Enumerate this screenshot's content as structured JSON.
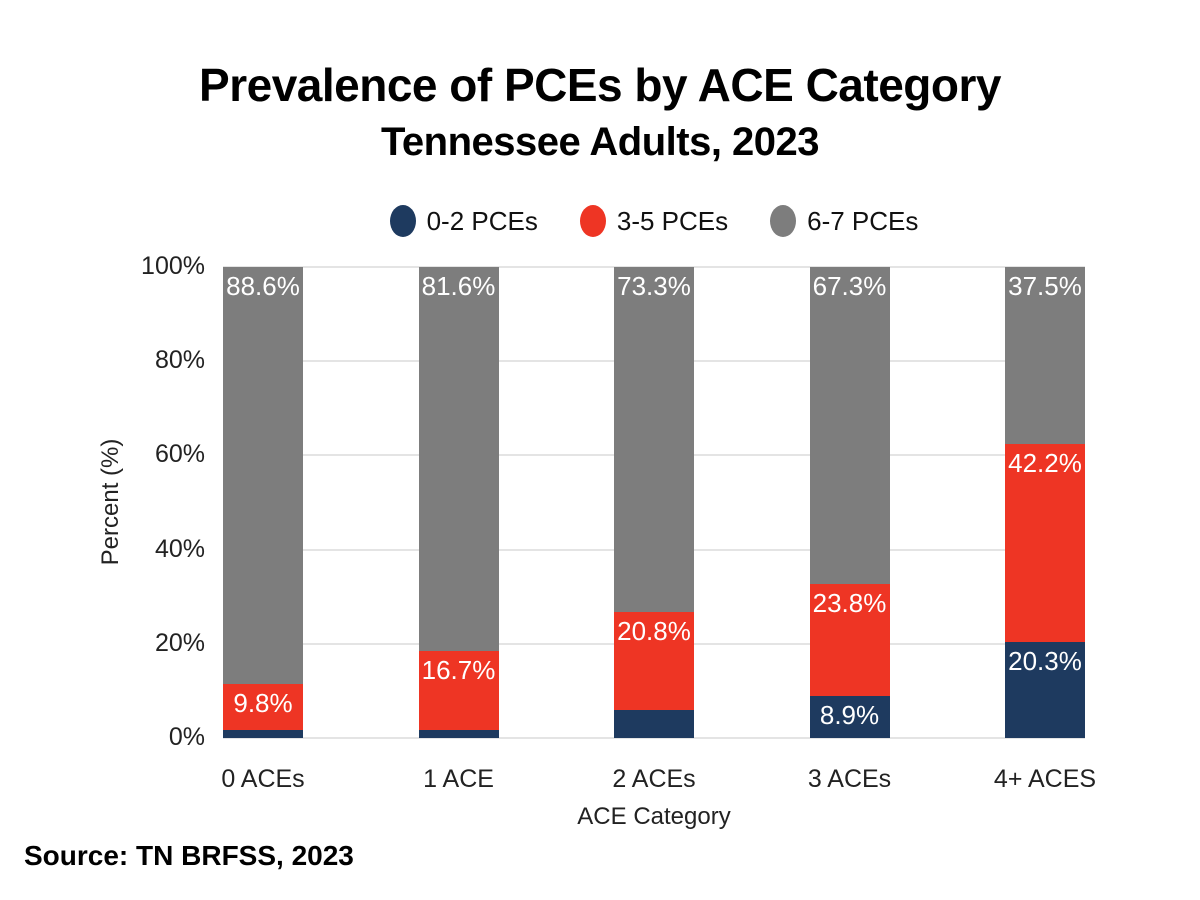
{
  "page": {
    "title": "Prevalence of PCEs by ACE Category",
    "subtitle": "Tennessee Adults, 2023",
    "source": "Source: TN BRFSS, 2023"
  },
  "colors": {
    "series_navy": "#1e3a5f",
    "series_red": "#ee3524",
    "series_gray": "#7d7d7d",
    "gridline": "#e4e4e4",
    "bar_label_text": "#ffffff",
    "axis_text": "#222222",
    "title_text": "#000000"
  },
  "chart_data": {
    "type": "bar",
    "stacked": true,
    "orientation": "vertical",
    "title": "Prevalence of PCEs by ACE Category",
    "subtitle": "Tennessee Adults, 2023",
    "xlabel": "ACE Category",
    "ylabel": "Percent (%)",
    "ylim": [
      0,
      100
    ],
    "ytick_step": 20,
    "ytick_labels": [
      "0%",
      "20%",
      "40%",
      "60%",
      "80%",
      "100%"
    ],
    "grid": true,
    "legend_position": "top-center",
    "categories": [
      "0 ACEs",
      "1 ACE",
      "2 ACEs",
      "3 ACEs",
      "4+ ACES"
    ],
    "series": [
      {
        "name": "0-2 PCEs",
        "color": "#1e3a5f",
        "values": [
          1.6,
          1.7,
          5.9,
          8.9,
          20.3
        ],
        "labels": [
          null,
          null,
          null,
          "8.9%",
          "20.3%"
        ]
      },
      {
        "name": "3-5 PCEs",
        "color": "#ee3524",
        "values": [
          9.8,
          16.7,
          20.8,
          23.8,
          42.2
        ],
        "labels": [
          "9.8%",
          "16.7%",
          "20.8%",
          "23.8%",
          "42.2%"
        ]
      },
      {
        "name": "6-7 PCEs",
        "color": "#7d7d7d",
        "values": [
          88.6,
          81.6,
          73.3,
          67.3,
          37.5
        ],
        "labels": [
          "88.6%",
          "81.6%",
          "73.3%",
          "67.3%",
          "37.5%"
        ]
      }
    ]
  }
}
